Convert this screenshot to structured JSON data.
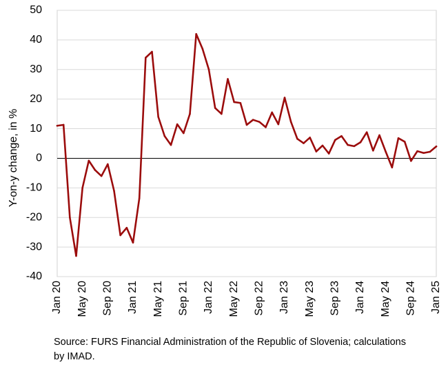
{
  "chart_data": {
    "type": "line",
    "title": "",
    "xlabel": "",
    "ylabel": "Y-on-y change, in %",
    "ylim": [
      -40,
      50
    ],
    "yticks": [
      -40,
      -30,
      -20,
      -10,
      0,
      10,
      20,
      30,
      40,
      50
    ],
    "x_tick_labels": [
      "Jan 20",
      "May 20",
      "Sep 20",
      "Jan 21",
      "May 21",
      "Sep 21",
      "Jan 22",
      "May 22",
      "Sep 22",
      "Jan 23",
      "May 23",
      "Sep 23",
      "Jan 24",
      "May 24",
      "Sep 24",
      "Jan 25"
    ],
    "grid": true,
    "line_color": "#9b0c0c",
    "series": [
      {
        "values": [
          11,
          11.3,
          -20,
          -33,
          -10,
          -0.8,
          -4,
          -6,
          -2,
          -11,
          -26,
          -23.5,
          -28.5,
          -13.5,
          34,
          36,
          14,
          7.5,
          4.5,
          11.5,
          8.5,
          15,
          42,
          37,
          30,
          17,
          15,
          26.8,
          19,
          18.7,
          11.3,
          13,
          12.3,
          10.5,
          15.5,
          11.5,
          20.5,
          12.3,
          6.6,
          5.1,
          7,
          2.3,
          4.3,
          1.6,
          6.2,
          7.5,
          4.5,
          4.1,
          5.4,
          8.8,
          2.6,
          7.8,
          2.2,
          -3.1,
          6.8,
          5.6,
          -0.9,
          2.4,
          1.8,
          2.2,
          4
        ]
      }
    ]
  },
  "source_text": "Source: FURS Financial Administration of the Republic of Slovenia; calculations by IMAD."
}
